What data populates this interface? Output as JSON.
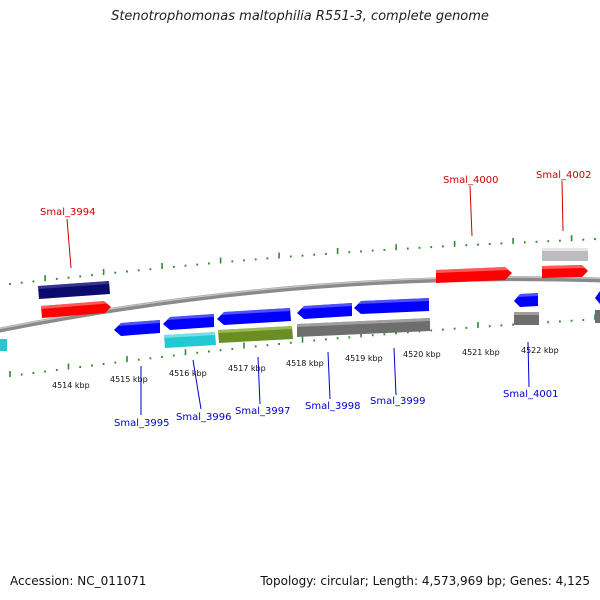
{
  "header": {
    "title": "Stenotrophomonas maltophilia R551-3, complete genome"
  },
  "footer": {
    "accession": "Accession: NC_011071",
    "summary": "Topology: circular; Length: 4,573,969 bp; Genes: 4,125"
  },
  "colors": {
    "forward_gene": "#ff0000",
    "reverse_gene": "#0000ff",
    "forward_label": "#cc0000",
    "reverse_label": "#0000cc",
    "backbone": "#8a8a8a",
    "ticks": "#2e8b2e",
    "dark_navy": "#0b0b6e",
    "cyan": "#22c8d2",
    "olive": "#6b8e23",
    "gray_gene": "#6e6e6e",
    "light_gray_gene": "#bcbcbc"
  },
  "scale": {
    "unit": "kbp",
    "labels": [
      "4514 kbp",
      "4515 kbp",
      "4516 kbp",
      "4517 kbp",
      "4518 kbp",
      "4519 kbp",
      "4520 kbp",
      "4521 kbp",
      "4522 kbp"
    ]
  },
  "genes": {
    "forward": [
      "Smal_3994",
      "Smal_4000",
      "Smal_4002"
    ],
    "reverse": [
      "Smal_3995",
      "Smal_3996",
      "Smal_3997",
      "Smal_3998",
      "Smal_3999",
      "Smal_4001"
    ]
  }
}
